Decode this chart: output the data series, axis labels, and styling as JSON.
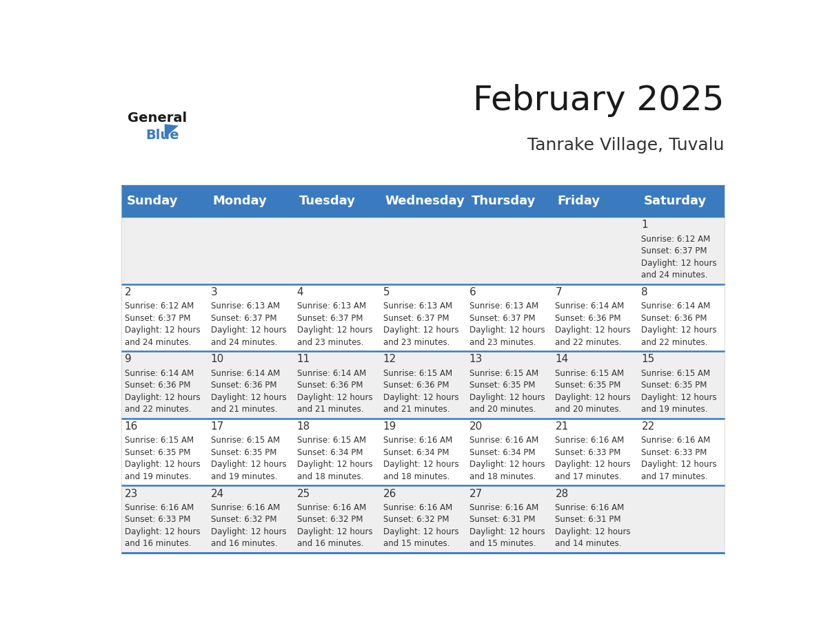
{
  "title": "February 2025",
  "subtitle": "Tanrake Village, Tuvalu",
  "header_color": "#3a7bbf",
  "header_text_color": "#ffffff",
  "cell_bg_even": "#efefef",
  "cell_bg_odd": "#ffffff",
  "day_headers": [
    "Sunday",
    "Monday",
    "Tuesday",
    "Wednesday",
    "Thursday",
    "Friday",
    "Saturday"
  ],
  "title_fontsize": 36,
  "subtitle_fontsize": 18,
  "header_fontsize": 13,
  "day_num_fontsize": 11,
  "info_fontsize": 8.5,
  "line_color": "#3a7bbf",
  "text_color": "#333333",
  "calendar_data": [
    [
      null,
      null,
      null,
      null,
      null,
      null,
      {
        "day": 1,
        "sunrise": "6:12 AM",
        "sunset": "6:37 PM",
        "daylight": "12 hours\nand 24 minutes."
      }
    ],
    [
      {
        "day": 2,
        "sunrise": "6:12 AM",
        "sunset": "6:37 PM",
        "daylight": "12 hours\nand 24 minutes."
      },
      {
        "day": 3,
        "sunrise": "6:13 AM",
        "sunset": "6:37 PM",
        "daylight": "12 hours\nand 24 minutes."
      },
      {
        "day": 4,
        "sunrise": "6:13 AM",
        "sunset": "6:37 PM",
        "daylight": "12 hours\nand 23 minutes."
      },
      {
        "day": 5,
        "sunrise": "6:13 AM",
        "sunset": "6:37 PM",
        "daylight": "12 hours\nand 23 minutes."
      },
      {
        "day": 6,
        "sunrise": "6:13 AM",
        "sunset": "6:37 PM",
        "daylight": "12 hours\nand 23 minutes."
      },
      {
        "day": 7,
        "sunrise": "6:14 AM",
        "sunset": "6:36 PM",
        "daylight": "12 hours\nand 22 minutes."
      },
      {
        "day": 8,
        "sunrise": "6:14 AM",
        "sunset": "6:36 PM",
        "daylight": "12 hours\nand 22 minutes."
      }
    ],
    [
      {
        "day": 9,
        "sunrise": "6:14 AM",
        "sunset": "6:36 PM",
        "daylight": "12 hours\nand 22 minutes."
      },
      {
        "day": 10,
        "sunrise": "6:14 AM",
        "sunset": "6:36 PM",
        "daylight": "12 hours\nand 21 minutes."
      },
      {
        "day": 11,
        "sunrise": "6:14 AM",
        "sunset": "6:36 PM",
        "daylight": "12 hours\nand 21 minutes."
      },
      {
        "day": 12,
        "sunrise": "6:15 AM",
        "sunset": "6:36 PM",
        "daylight": "12 hours\nand 21 minutes."
      },
      {
        "day": 13,
        "sunrise": "6:15 AM",
        "sunset": "6:35 PM",
        "daylight": "12 hours\nand 20 minutes."
      },
      {
        "day": 14,
        "sunrise": "6:15 AM",
        "sunset": "6:35 PM",
        "daylight": "12 hours\nand 20 minutes."
      },
      {
        "day": 15,
        "sunrise": "6:15 AM",
        "sunset": "6:35 PM",
        "daylight": "12 hours\nand 19 minutes."
      }
    ],
    [
      {
        "day": 16,
        "sunrise": "6:15 AM",
        "sunset": "6:35 PM",
        "daylight": "12 hours\nand 19 minutes."
      },
      {
        "day": 17,
        "sunrise": "6:15 AM",
        "sunset": "6:35 PM",
        "daylight": "12 hours\nand 19 minutes."
      },
      {
        "day": 18,
        "sunrise": "6:15 AM",
        "sunset": "6:34 PM",
        "daylight": "12 hours\nand 18 minutes."
      },
      {
        "day": 19,
        "sunrise": "6:16 AM",
        "sunset": "6:34 PM",
        "daylight": "12 hours\nand 18 minutes."
      },
      {
        "day": 20,
        "sunrise": "6:16 AM",
        "sunset": "6:34 PM",
        "daylight": "12 hours\nand 18 minutes."
      },
      {
        "day": 21,
        "sunrise": "6:16 AM",
        "sunset": "6:33 PM",
        "daylight": "12 hours\nand 17 minutes."
      },
      {
        "day": 22,
        "sunrise": "6:16 AM",
        "sunset": "6:33 PM",
        "daylight": "12 hours\nand 17 minutes."
      }
    ],
    [
      {
        "day": 23,
        "sunrise": "6:16 AM",
        "sunset": "6:33 PM",
        "daylight": "12 hours\nand 16 minutes."
      },
      {
        "day": 24,
        "sunrise": "6:16 AM",
        "sunset": "6:32 PM",
        "daylight": "12 hours\nand 16 minutes."
      },
      {
        "day": 25,
        "sunrise": "6:16 AM",
        "sunset": "6:32 PM",
        "daylight": "12 hours\nand 16 minutes."
      },
      {
        "day": 26,
        "sunrise": "6:16 AM",
        "sunset": "6:32 PM",
        "daylight": "12 hours\nand 15 minutes."
      },
      {
        "day": 27,
        "sunrise": "6:16 AM",
        "sunset": "6:31 PM",
        "daylight": "12 hours\nand 15 minutes."
      },
      {
        "day": 28,
        "sunrise": "6:16 AM",
        "sunset": "6:31 PM",
        "daylight": "12 hours\nand 14 minutes."
      },
      null
    ]
  ]
}
